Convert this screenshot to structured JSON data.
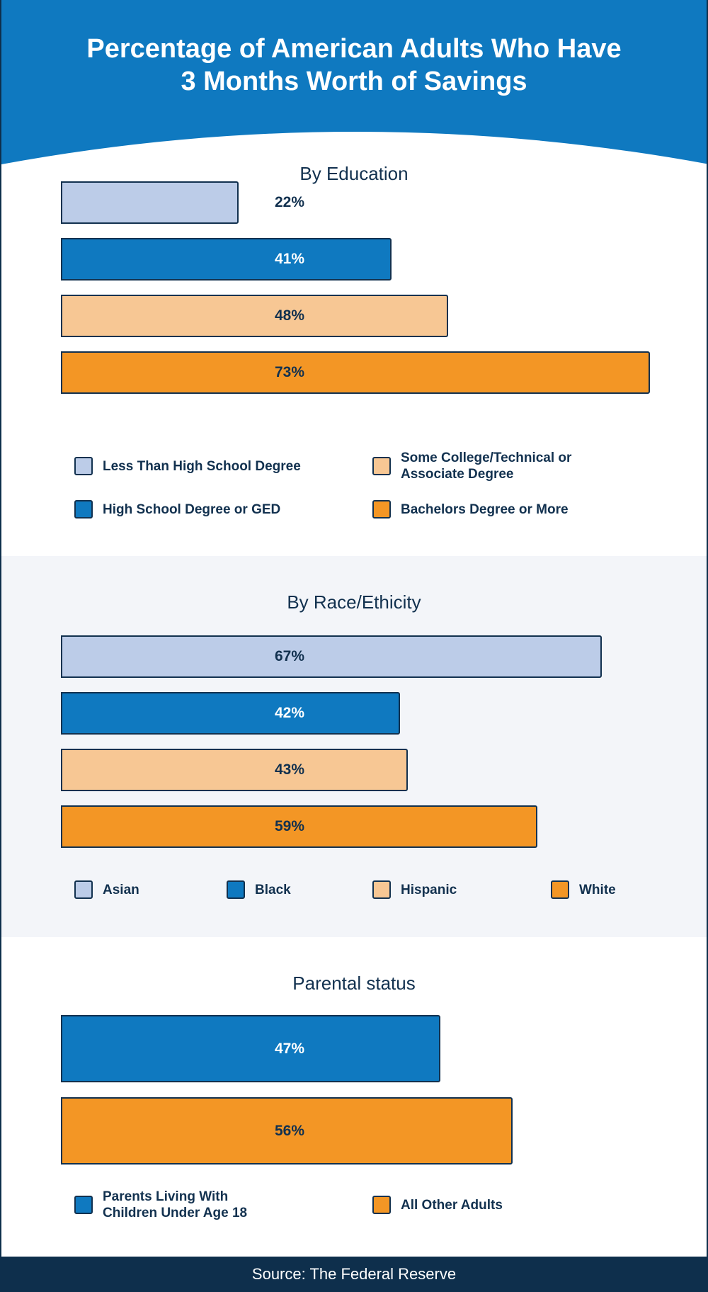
{
  "header": {
    "title_line1": "Percentage of American Adults Who Have",
    "title_line2": "3 Months Worth of Savings"
  },
  "colors": {
    "header_blue": "#0f79c0",
    "light_blue": "#bccce8",
    "blue": "#0f79c0",
    "peach": "#f7c794",
    "orange": "#f39625",
    "navy": "#12314f",
    "gray_bg": "#f3f5f9"
  },
  "chart_data": [
    {
      "type": "bar",
      "orientation": "horizontal",
      "title": "By Education",
      "categories": [
        "Less Than High School Degree",
        "High School Degree or GED",
        "Some College/Technical or Associate Degree",
        "Bachelors Degree or More"
      ],
      "values": [
        22,
        41,
        48,
        73
      ],
      "value_labels": [
        "22%",
        "41%",
        "48%",
        "73%"
      ],
      "colors": [
        "#bccce8",
        "#0f79c0",
        "#f7c794",
        "#f39625"
      ],
      "legend": {
        "left": [
          "Less Than High School Degree",
          "High School Degree or GED"
        ],
        "right": [
          "Some College/Technical or",
          "Associate Degree",
          "Bachelors Degree or More"
        ]
      },
      "xlim": [
        0,
        100
      ],
      "grid": false
    },
    {
      "type": "bar",
      "orientation": "horizontal",
      "title": "By Race/Ethicity",
      "categories": [
        "Asian",
        "Black",
        "Hispanic",
        "White"
      ],
      "values": [
        67,
        42,
        43,
        59
      ],
      "value_labels": [
        "67%",
        "42%",
        "43%",
        "59%"
      ],
      "colors": [
        "#bccce8",
        "#0f79c0",
        "#f7c794",
        "#f39625"
      ],
      "xlim": [
        0,
        100
      ],
      "grid": false
    },
    {
      "type": "bar",
      "orientation": "horizontal",
      "title": "Parental status",
      "categories": [
        "Parents Living With Children Under Age 18",
        "All Other Adults"
      ],
      "legend_lines": [
        "Parents Living With",
        "Children Under Age 18",
        "All Other Adults"
      ],
      "values": [
        47,
        56
      ],
      "value_labels": [
        "47%",
        "56%"
      ],
      "colors": [
        "#0f79c0",
        "#f39625"
      ],
      "xlim": [
        0,
        100
      ],
      "grid": false
    }
  ],
  "footer": {
    "source": "Source: The Federal Reserve"
  }
}
